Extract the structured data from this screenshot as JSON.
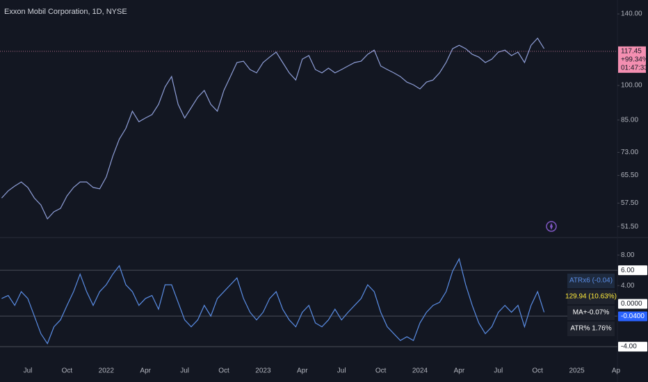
{
  "chart_data": [
    {
      "type": "line",
      "title": "Exxon Mobil Corporation, 1D, NYSE",
      "categories": [
        null,
        null,
        null,
        null,
        "Jul",
        null,
        null,
        null,
        null,
        null,
        "Oct",
        null,
        null,
        null,
        null,
        null,
        "2022",
        null,
        null,
        null,
        null,
        null,
        "Apr",
        null,
        null,
        null,
        null,
        null,
        "Jul",
        null,
        null,
        null,
        null,
        null,
        "Oct",
        null,
        null,
        null,
        null,
        null,
        "2023",
        null,
        null,
        null,
        null,
        null,
        "Apr",
        null,
        null,
        null,
        null,
        null,
        "Jul",
        null,
        null,
        null,
        null,
        null,
        "Oct",
        null,
        null,
        null,
        null,
        null,
        "2024",
        null,
        null,
        null,
        null,
        null,
        "Apr",
        null,
        null,
        null,
        null,
        null,
        "Jul",
        null,
        null,
        null,
        null,
        null,
        "Oct",
        null,
        null,
        null,
        null,
        null,
        "2025",
        null,
        null,
        null,
        null,
        null,
        "Ap",
        null
      ],
      "values": [
        58.9,
        60.9,
        62.3,
        63.5,
        61.9,
        58.9,
        57.0,
        53.4,
        55.2,
        56.1,
        59.5,
        61.9,
        63.5,
        63.5,
        61.9,
        61.5,
        65.0,
        71.7,
        77.7,
        81.7,
        88.6,
        84.3,
        85.8,
        87.2,
        91.5,
        99.3,
        104.3,
        91.5,
        85.8,
        90.1,
        94.6,
        97.7,
        91.5,
        88.6,
        97.7,
        104.3,
        111.4,
        112.1,
        107.8,
        106.1,
        111.4,
        114.3,
        117.0,
        111.4,
        106.1,
        102.6,
        113.2,
        115.1,
        107.8,
        106.1,
        108.5,
        106.1,
        107.8,
        109.6,
        111.4,
        112.1,
        115.8,
        118.1,
        109.6,
        107.8,
        106.1,
        104.3,
        101.6,
        100.3,
        98.4,
        101.6,
        102.6,
        106.1,
        111.4,
        118.9,
        120.8,
        118.9,
        115.8,
        114.3,
        111.4,
        113.2,
        117.0,
        118.1,
        115.1,
        117.0,
        111.4,
        120.8,
        124.9,
        118.9,
        null,
        null,
        null,
        null,
        null,
        null,
        null,
        null,
        null,
        null,
        null,
        null
      ],
      "color": "#8f9fd8",
      "log_scale": true,
      "ylim": [
        48.9,
        149.5
      ],
      "yticks": [
        {
          "value": 140,
          "label": "140.00"
        },
        {
          "value": 100,
          "label": "100.00"
        },
        {
          "value": 85,
          "label": "85.00"
        },
        {
          "value": 73,
          "label": "73.00"
        },
        {
          "value": 65.5,
          "label": "65.50"
        },
        {
          "value": 57.5,
          "label": "57.50"
        },
        {
          "value": 51.5,
          "label": "51.50"
        }
      ],
      "last_value": 117.45,
      "last_value_notes": [
        "+99.34%",
        "01:47:33"
      ],
      "last_value_color": "#f48fb1"
    },
    {
      "type": "line",
      "values": [
        2.3,
        2.7,
        1.4,
        3.2,
        2.3,
        0,
        -2.3,
        -3.6,
        -1.4,
        -0.5,
        1.4,
        3.2,
        5.5,
        3.2,
        1.4,
        3.2,
        4.1,
        5.5,
        6.6,
        4.1,
        3.2,
        1.4,
        2.3,
        2.7,
        0.9,
        4.1,
        4.1,
        1.8,
        -0.5,
        -1.4,
        -0.5,
        1.4,
        0,
        2.3,
        3.2,
        4.1,
        5.0,
        2.3,
        0.5,
        -0.5,
        0.5,
        2.3,
        3.2,
        0.9,
        -0.5,
        -1.4,
        0.5,
        1.4,
        -0.9,
        -1.4,
        -0.5,
        0.9,
        -0.5,
        0.5,
        1.4,
        2.3,
        4.1,
        3.2,
        0.5,
        -1.4,
        -2.3,
        -3.2,
        -2.7,
        -3.2,
        -0.9,
        0.5,
        1.4,
        1.8,
        3.2,
        5.9,
        7.5,
        4.1,
        1.4,
        -0.9,
        -2.3,
        -1.4,
        0.5,
        1.4,
        0.5,
        1.4,
        -1.4,
        1.4,
        3.2,
        0.5,
        null,
        null,
        null,
        null,
        null,
        null,
        null,
        null,
        null,
        null,
        null,
        null
      ],
      "color": "#5b8ee6",
      "ylim": [
        -5.45,
        10.2
      ],
      "yticks": [
        {
          "value": 8,
          "label": "8.00"
        },
        {
          "value": 4,
          "label": "4.00"
        }
      ],
      "levels": [
        {
          "value": 6,
          "label": "6.00"
        },
        {
          "value": 0,
          "label": "0.0000"
        },
        {
          "value": -4,
          "label": "-4.00"
        }
      ],
      "last_value": {
        "value": -0.04,
        "label": "-0.0400"
      },
      "legend": [
        "ATRx6 (-0.04)",
        "129.94 (10.63%)",
        "MA+-0.07%",
        "ATR% 1.76%"
      ]
    }
  ]
}
